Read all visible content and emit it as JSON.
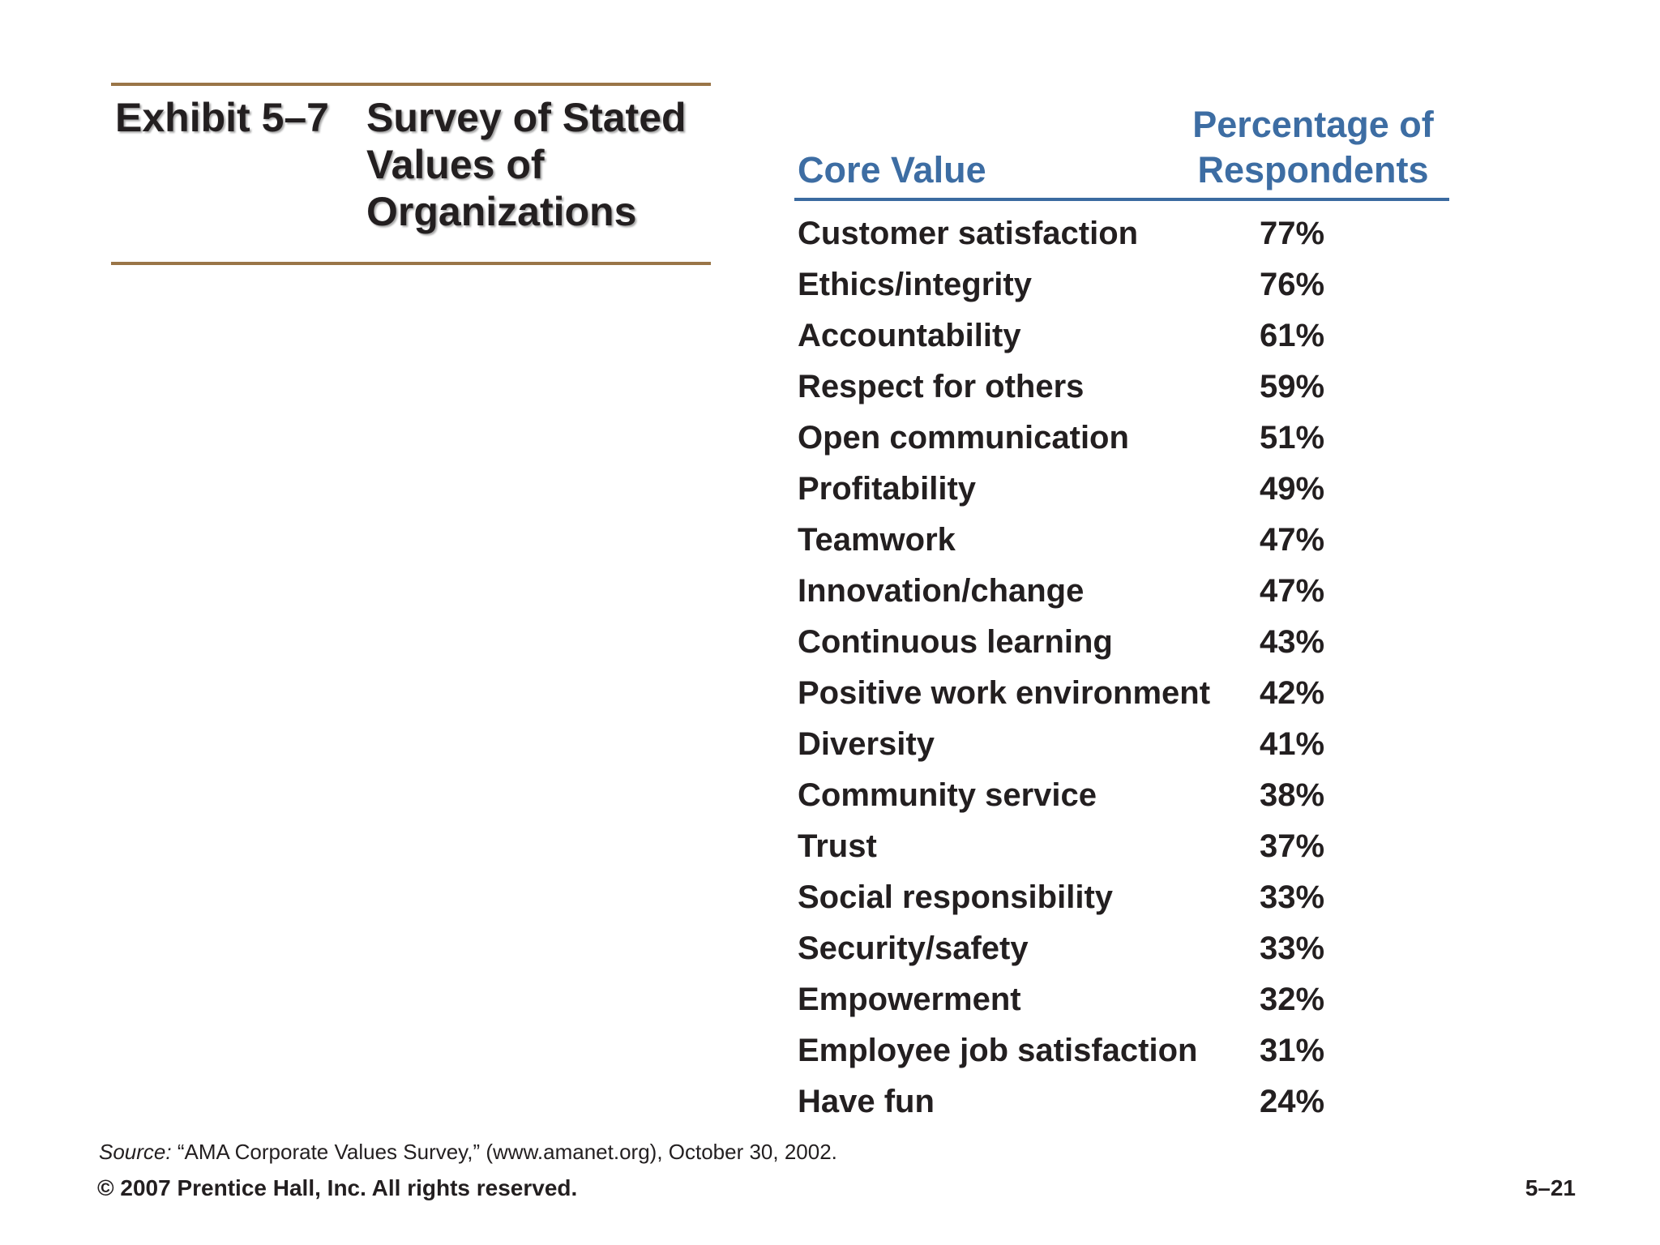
{
  "exhibit": {
    "label": "Exhibit 5–7",
    "title_lines": [
      "Survey of Stated",
      "Values of",
      "Organizations"
    ]
  },
  "table": {
    "headers": {
      "core_value": "Core Value",
      "percentage_lines": [
        "Percentage of",
        "Respondents"
      ]
    },
    "rows": [
      {
        "value": "Customer satisfaction",
        "percent": "77%"
      },
      {
        "value": "Ethics/integrity",
        "percent": "76%"
      },
      {
        "value": "Accountability",
        "percent": "61%"
      },
      {
        "value": "Respect for others",
        "percent": "59%"
      },
      {
        "value": "Open communication",
        "percent": "51%"
      },
      {
        "value": "Profitability",
        "percent": "49%"
      },
      {
        "value": "Teamwork",
        "percent": "47%"
      },
      {
        "value": "Innovation/change",
        "percent": "47%"
      },
      {
        "value": "Continuous learning",
        "percent": "43%"
      },
      {
        "value": "Positive work environment",
        "percent": "42%"
      },
      {
        "value": "Diversity",
        "percent": "41%"
      },
      {
        "value": "Community service",
        "percent": "38%"
      },
      {
        "value": "Trust",
        "percent": "37%"
      },
      {
        "value": "Social responsibility",
        "percent": "33%"
      },
      {
        "value": "Security/safety",
        "percent": "33%"
      },
      {
        "value": "Empowerment",
        "percent": "32%"
      },
      {
        "value": "Employee job satisfaction",
        "percent": "31%"
      },
      {
        "value": "Have fun",
        "percent": "24%"
      }
    ]
  },
  "footer": {
    "source_label": "Source:",
    "source_text": "“AMA Corporate Values Survey,” (www.amanet.org), October 30, 2002.",
    "copyright": "© 2007 Prentice Hall, Inc. All rights reserved.",
    "page_number": "5–21"
  },
  "colors": {
    "rule": "#9a7547",
    "header_text": "#3d6da3",
    "header_rule": "#3a6aa0",
    "body_text": "#231f20"
  }
}
